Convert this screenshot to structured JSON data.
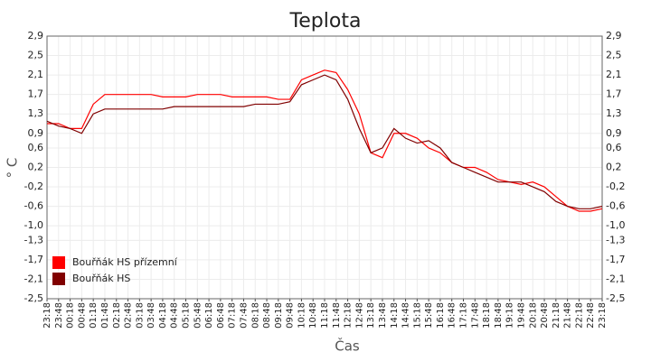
{
  "chart_data": {
    "type": "line",
    "title": "Teplota",
    "x_label": "Čas",
    "y_label": "° C",
    "categories": [
      "23:18",
      "23:48",
      "00:18",
      "00:48",
      "01:18",
      "01:48",
      "02:18",
      "02:48",
      "03:18",
      "03:48",
      "04:18",
      "04:48",
      "05:18",
      "05:48",
      "06:18",
      "06:48",
      "07:18",
      "07:48",
      "08:18",
      "08:48",
      "09:18",
      "09:48",
      "10:18",
      "10:48",
      "11:18",
      "11:48",
      "12:18",
      "12:48",
      "13:18",
      "13:48",
      "14:18",
      "14:48",
      "15:18",
      "15:48",
      "16:18",
      "16:48",
      "17:18",
      "17:48",
      "18:18",
      "18:48",
      "19:18",
      "19:48",
      "20:18",
      "20:48",
      "21:18",
      "21:48",
      "22:18",
      "22:48",
      "23:18"
    ],
    "series": [
      {
        "name": "Bouřňák HS přízemní",
        "color": "#ff0000",
        "values": [
          1.1,
          1.1,
          1.0,
          1.0,
          1.5,
          1.7,
          1.7,
          1.7,
          1.7,
          1.7,
          1.65,
          1.65,
          1.65,
          1.7,
          1.7,
          1.7,
          1.65,
          1.65,
          1.65,
          1.65,
          1.6,
          1.6,
          2.0,
          2.1,
          2.2,
          2.15,
          1.8,
          1.3,
          0.5,
          0.4,
          0.9,
          0.9,
          0.8,
          0.6,
          0.5,
          0.3,
          0.2,
          0.2,
          0.1,
          -0.05,
          -0.1,
          -0.15,
          -0.1,
          -0.2,
          -0.4,
          -0.6,
          -0.7,
          -0.7,
          -0.65
        ]
      },
      {
        "name": "Bouřňák HS",
        "color": "#800000",
        "values": [
          1.15,
          1.05,
          1.0,
          0.9,
          1.3,
          1.4,
          1.4,
          1.4,
          1.4,
          1.4,
          1.4,
          1.45,
          1.45,
          1.45,
          1.45,
          1.45,
          1.45,
          1.45,
          1.5,
          1.5,
          1.5,
          1.55,
          1.9,
          2.0,
          2.1,
          2.0,
          1.6,
          1.0,
          0.5,
          0.6,
          1.0,
          0.8,
          0.7,
          0.75,
          0.6,
          0.3,
          0.2,
          0.1,
          0.0,
          -0.1,
          -0.1,
          -0.1,
          -0.2,
          -0.3,
          -0.5,
          -0.6,
          -0.65,
          -0.65,
          -0.6
        ]
      }
    ],
    "ylim": [
      -2.5,
      2.9
    ],
    "yticks": [
      {
        "value": -2.5,
        "label": "-2,5"
      },
      {
        "value": -2.1,
        "label": "-2,1"
      },
      {
        "value": -1.7,
        "label": "-1,7"
      },
      {
        "value": -1.3,
        "label": "-1,3"
      },
      {
        "value": -1.0,
        "label": "-1,0"
      },
      {
        "value": -0.6,
        "label": "-0,6"
      },
      {
        "value": -0.2,
        "label": "-0,2"
      },
      {
        "value": 0.2,
        "label": "0,2"
      },
      {
        "value": 0.6,
        "label": "0,6"
      },
      {
        "value": 0.9,
        "label": "0,9"
      },
      {
        "value": 1.3,
        "label": "1,3"
      },
      {
        "value": 1.7,
        "label": "1,7"
      },
      {
        "value": 2.1,
        "label": "2,1"
      },
      {
        "value": 2.5,
        "label": "2,5"
      },
      {
        "value": 2.9,
        "label": "2,9"
      }
    ],
    "grid": true,
    "legend": "lower left"
  }
}
